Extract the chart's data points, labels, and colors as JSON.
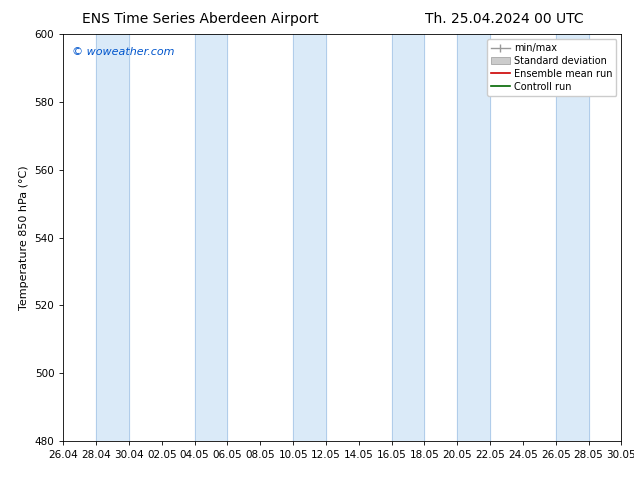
{
  "title_left": "ENS Time Series Aberdeen Airport",
  "title_right": "Th. 25.04.2024 00 UTC",
  "ylabel": "Temperature 850 hPa (°C)",
  "watermark": "© woweather.com",
  "watermark_color": "#0055cc",
  "ylim": [
    480,
    600
  ],
  "yticks": [
    480,
    500,
    520,
    540,
    560,
    580,
    600
  ],
  "xtick_labels": [
    "26.04",
    "28.04",
    "30.04",
    "02.05",
    "04.05",
    "06.05",
    "08.05",
    "10.05",
    "12.05",
    "14.05",
    "16.05",
    "18.05",
    "20.05",
    "22.05",
    "24.05",
    "26.05",
    "28.05",
    "30.05"
  ],
  "band_color": "#daeaf8",
  "band_edge_color": "#aac8e8",
  "legend_labels": [
    "min/max",
    "Standard deviation",
    "Ensemble mean run",
    "Controll run"
  ],
  "background_color": "#ffffff",
  "title_fontsize": 10,
  "axis_fontsize": 8,
  "tick_fontsize": 7.5,
  "watermark_fontsize": 8
}
